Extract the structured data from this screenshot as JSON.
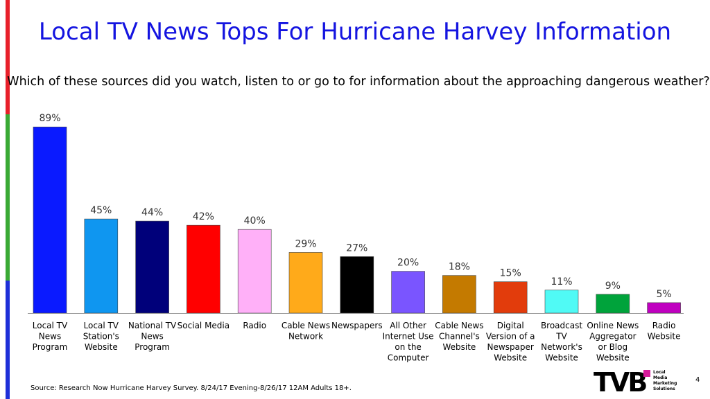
{
  "title": "Local TV News Tops For Hurricane Harvey Information",
  "subtitle": "Which of these sources did you watch, listen to or go to for information about the approaching dangerous weather?",
  "source": "Source: Research Now Hurricane Harvey Survey. 8/24/17 Evening-8/26/17 12AM Adults 18+.",
  "page_number": "4",
  "logo": {
    "mark": "TVB",
    "text_lines": [
      "Local",
      "Media",
      "Marketing",
      "Solutions"
    ]
  },
  "colors": {
    "title": "#1414e0",
    "stripe_red": "#e8202a",
    "stripe_green": "#3aaa35",
    "stripe_blue": "#1e2fd8"
  },
  "chart_data": {
    "type": "bar",
    "title": "",
    "xlabel": "",
    "ylabel": "",
    "ylim": [
      0,
      100
    ],
    "grid": false,
    "legend": "none",
    "categories": [
      [
        "Local TV",
        "News",
        "Program"
      ],
      [
        "Local TV",
        "Station's",
        "Website"
      ],
      [
        "National TV",
        "News",
        "Program"
      ],
      [
        "Social Media"
      ],
      [
        "Radio"
      ],
      [
        "Cable News",
        "Network"
      ],
      [
        "Newspapers"
      ],
      [
        "All Other",
        "Internet Use",
        "on the",
        "Computer"
      ],
      [
        "Cable News",
        "Channel's",
        "Website"
      ],
      [
        "Digital",
        "Version of a",
        "Newspaper",
        "Website"
      ],
      [
        "Broadcast",
        "TV",
        "Network's",
        "Website"
      ],
      [
        "Online News",
        "Aggregator",
        "or Blog",
        "Website"
      ],
      [
        "Radio",
        "Website"
      ]
    ],
    "values": [
      89,
      45,
      44,
      42,
      40,
      29,
      27,
      20,
      18,
      15,
      11,
      9,
      5
    ],
    "value_labels": [
      "89%",
      "45%",
      "44%",
      "42%",
      "40%",
      "29%",
      "27%",
      "20%",
      "18%",
      "15%",
      "11%",
      "9%",
      "5%"
    ],
    "colors": [
      "#0a1aff",
      "#0f96f0",
      "#00007a",
      "#ff0000",
      "#ffb0f8",
      "#ffaa1a",
      "#000000",
      "#7a55ff",
      "#c47a00",
      "#e23c0c",
      "#50faf5",
      "#00a33b",
      "#c000c0"
    ]
  }
}
